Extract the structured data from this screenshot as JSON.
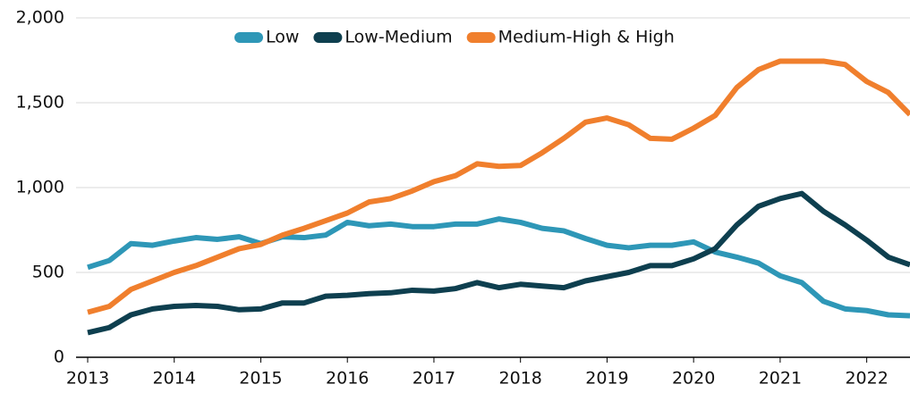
{
  "chart_data": {
    "type": "line",
    "x": [
      2013,
      2013.25,
      2013.5,
      2013.75,
      2014,
      2014.25,
      2014.5,
      2014.75,
      2015,
      2015.25,
      2015.5,
      2015.75,
      2016,
      2016.25,
      2016.5,
      2016.75,
      2017,
      2017.25,
      2017.5,
      2017.75,
      2018,
      2018.25,
      2018.5,
      2018.75,
      2019,
      2019.25,
      2019.5,
      2019.75,
      2020,
      2020.25,
      2020.5,
      2020.75,
      2021,
      2021.25,
      2021.5,
      2021.75,
      2022,
      2022.25,
      2022.5
    ],
    "series": [
      {
        "name": "Low",
        "color": "#2e97b7",
        "values": [
          530,
          570,
          670,
          660,
          685,
          705,
          695,
          710,
          670,
          710,
          705,
          720,
          795,
          775,
          785,
          770,
          770,
          785,
          785,
          815,
          795,
          760,
          745,
          700,
          660,
          645,
          660,
          660,
          680,
          620,
          590,
          555,
          480,
          440,
          330,
          285,
          275,
          250,
          245
        ]
      },
      {
        "name": "Low-Medium",
        "color": "#0e3f4f",
        "values": [
          145,
          175,
          250,
          285,
          300,
          305,
          300,
          280,
          285,
          320,
          320,
          360,
          365,
          375,
          380,
          395,
          390,
          405,
          440,
          410,
          430,
          420,
          410,
          450,
          475,
          500,
          540,
          540,
          580,
          640,
          780,
          890,
          935,
          965,
          860,
          780,
          690,
          590,
          545
        ]
      },
      {
        "name": "Medium-High & High",
        "color": "#f07f2d",
        "values": [
          265,
          300,
          400,
          450,
          500,
          540,
          590,
          640,
          665,
          720,
          760,
          805,
          850,
          915,
          935,
          980,
          1035,
          1070,
          1140,
          1125,
          1130,
          1205,
          1290,
          1385,
          1410,
          1370,
          1290,
          1285,
          1350,
          1425,
          1590,
          1695,
          1745,
          1745,
          1745,
          1725,
          1625,
          1560,
          1430
        ]
      }
    ],
    "xlim": [
      2013,
      2022.5
    ],
    "xticks": [
      2013,
      2014,
      2015,
      2016,
      2017,
      2018,
      2019,
      2020,
      2021,
      2022
    ],
    "ylim": [
      0,
      2000
    ],
    "yticks": [
      0,
      500,
      {
        "value": 1000,
        "label": "1,000"
      },
      {
        "value": 1500,
        "label": "1,500"
      },
      {
        "value": 2000,
        "label": "2,000"
      }
    ],
    "grid": true,
    "legend": "top"
  }
}
